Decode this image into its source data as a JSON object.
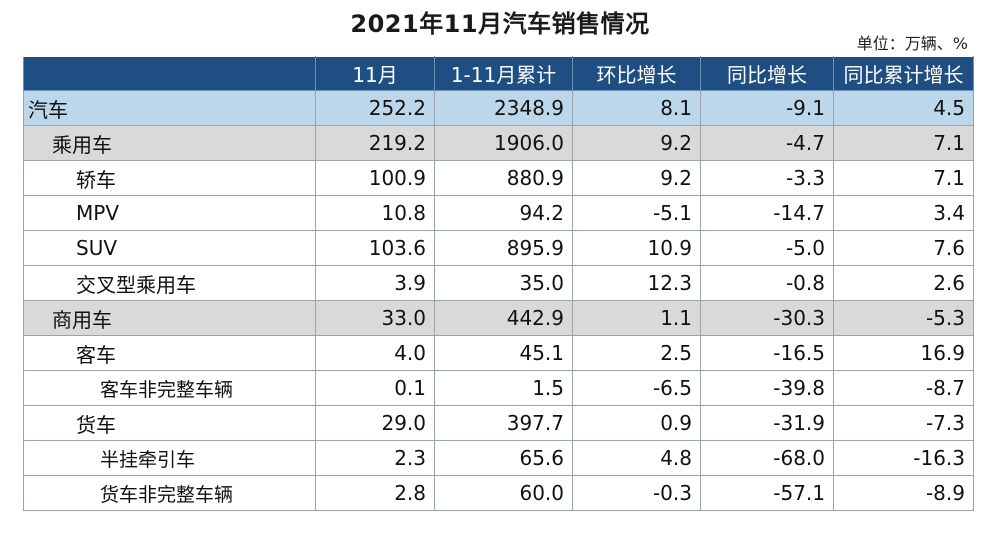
{
  "title": "2021年11月汽车销售情况",
  "unit": "单位：万辆、%",
  "table": {
    "headers": [
      "",
      "11月",
      "1-11月累计",
      "环比增长",
      "同比增长",
      "同比累计增长"
    ],
    "rows": [
      {
        "level": 0,
        "label": "汽车",
        "values": [
          "252.2",
          "2348.9",
          "8.1",
          "-9.1",
          "4.5"
        ]
      },
      {
        "level": 1,
        "label": "乘用车",
        "values": [
          "219.2",
          "1906.0",
          "9.2",
          "-4.7",
          "7.1"
        ]
      },
      {
        "level": 2,
        "label": "轿车",
        "values": [
          "100.9",
          "880.9",
          "9.2",
          "-3.3",
          "7.1"
        ]
      },
      {
        "level": 2,
        "label": "MPV",
        "values": [
          "10.8",
          "94.2",
          "-5.1",
          "-14.7",
          "3.4"
        ]
      },
      {
        "level": 2,
        "label": "SUV",
        "values": [
          "103.6",
          "895.9",
          "10.9",
          "-5.0",
          "7.6"
        ]
      },
      {
        "level": 2,
        "label": "交叉型乘用车",
        "values": [
          "3.9",
          "35.0",
          "12.3",
          "-0.8",
          "2.6"
        ]
      },
      {
        "level": 1,
        "label": "商用车",
        "values": [
          "33.0",
          "442.9",
          "1.1",
          "-30.3",
          "-5.3"
        ]
      },
      {
        "level": 3,
        "label": "客车",
        "values": [
          "4.0",
          "45.1",
          "2.5",
          "-16.5",
          "16.9"
        ]
      },
      {
        "level": 4,
        "label": "客车非完整车辆",
        "values": [
          "0.1",
          "1.5",
          "-6.5",
          "-39.8",
          "-8.7"
        ]
      },
      {
        "level": 3,
        "label": "货车",
        "values": [
          "29.0",
          "397.7",
          "0.9",
          "-31.9",
          "-7.3"
        ]
      },
      {
        "level": 4,
        "label": "半挂牵引车",
        "values": [
          "2.3",
          "65.6",
          "4.8",
          "-68.0",
          "-16.3"
        ]
      },
      {
        "level": 4,
        "label": "货车非完整车辆",
        "values": [
          "2.8",
          "60.0",
          "-0.3",
          "-57.1",
          "-8.9"
        ]
      }
    ]
  }
}
